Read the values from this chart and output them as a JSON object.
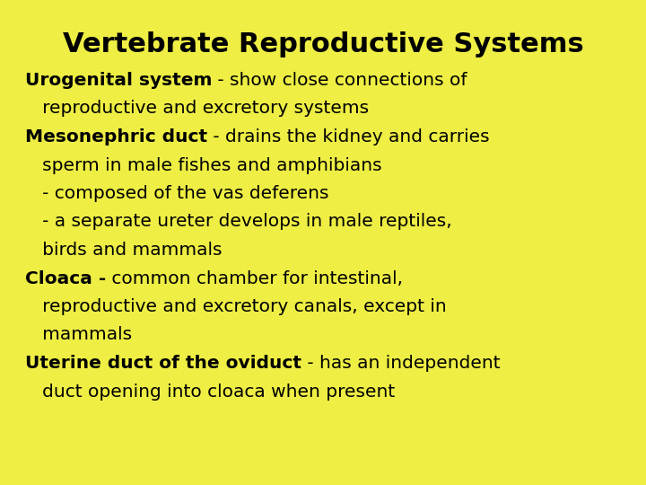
{
  "title": "Vertebrate Reproductive Systems",
  "background_color": "#EEEE44",
  "title_fontsize": 22,
  "body_fontsize": 14.5,
  "text_color": "#000000",
  "lines": [
    {
      "bold": "Urogenital system",
      "normal": " - show close connections of"
    },
    {
      "bold": "",
      "normal": "   reproductive and excretory systems"
    },
    {
      "bold": "Mesonephric duct",
      "normal": " - drains the kidney and carries"
    },
    {
      "bold": "",
      "normal": "   sperm in male fishes and amphibians"
    },
    {
      "bold": "",
      "normal": "   - composed of the vas deferens"
    },
    {
      "bold": "",
      "normal": "   - a separate ureter develops in male reptiles,"
    },
    {
      "bold": "",
      "normal": "   birds and mammals"
    },
    {
      "bold": "Cloaca -",
      "normal": " common chamber for intestinal,"
    },
    {
      "bold": "",
      "normal": "   reproductive and excretory canals, except in"
    },
    {
      "bold": "",
      "normal": "   mammals"
    },
    {
      "bold": "Uterine duct of the oviduct",
      "normal": " - has an independent"
    },
    {
      "bold": "",
      "normal": "   duct opening into cloaca when present"
    }
  ]
}
